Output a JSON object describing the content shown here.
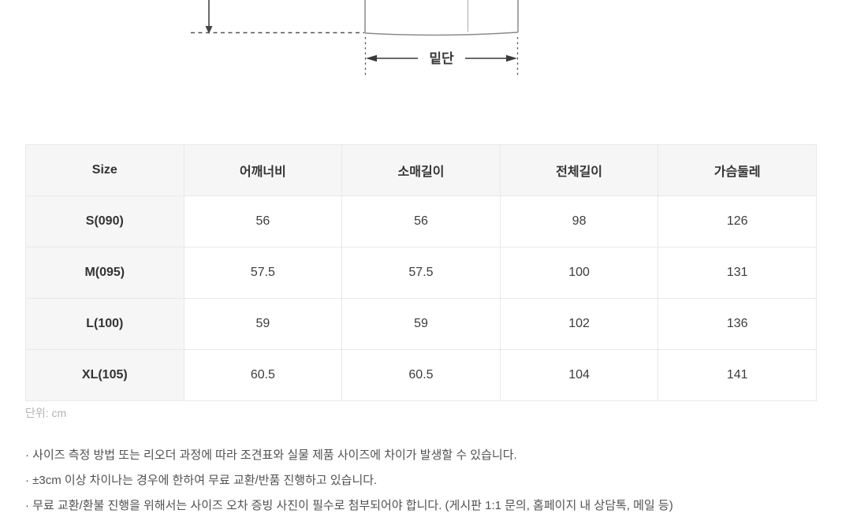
{
  "diagram": {
    "hem_label": "밑단"
  },
  "size_table": {
    "columns": [
      "Size",
      "어깨너비",
      "소매길이",
      "전체길이",
      "가슴둘레"
    ],
    "rows": [
      {
        "size": "S(090)",
        "values": [
          "56",
          "56",
          "98",
          "126"
        ]
      },
      {
        "size": "M(095)",
        "values": [
          "57.5",
          "57.5",
          "100",
          "131"
        ]
      },
      {
        "size": "L(100)",
        "values": [
          "59",
          "59",
          "102",
          "136"
        ]
      },
      {
        "size": "XL(105)",
        "values": [
          "60.5",
          "60.5",
          "104",
          "141"
        ]
      }
    ],
    "unit_note": "단위: cm"
  },
  "notes": {
    "items": [
      "· 사이즈 측정 방법 또는 리오더 과정에 따라 조견표와 실물 제품 사이즈에 차이가 발생할 수 있습니다.",
      "· ±3cm 이상 차이나는 경우에 한하여 무료 교환/반품 진행하고 있습니다.",
      "· 무료 교환/환불 진행을 위해서는 사이즈 오차 증빙 사진이 필수로 첨부되어야 합니다. (게시판 1:1 문의, 홈페이지 내 상담톡, 메일 등)"
    ]
  },
  "colors": {
    "table_header_bg": "#f6f6f6",
    "table_border": "#e9e9e9",
    "body_text": "#3c3c3c",
    "muted_text": "#b3b3b3",
    "note_text": "#515151",
    "diagram_line": "#8a8a8a"
  }
}
